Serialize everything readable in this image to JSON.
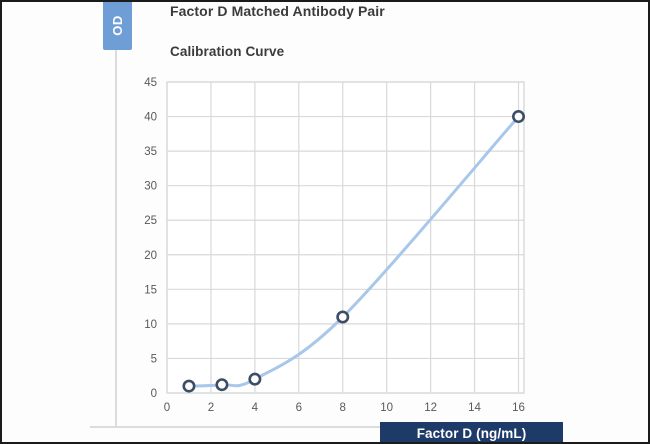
{
  "header": {
    "title": "Factor D Matched Antibody Pair",
    "subtitle": "Calibration Curve"
  },
  "axes": {
    "y_title": "OD",
    "x_title": "Factor D (ng/mL)",
    "y_title_box_color": "#6f9ed7",
    "x_title_box_color": "#1e3a69",
    "axis_title_text_color": "#ffffff"
  },
  "chart_data": {
    "type": "line",
    "title": "Calibration Curve",
    "xlabel": "Factor D (ng/mL)",
    "ylabel": "OD",
    "x": [
      1,
      2.5,
      4,
      8,
      16
    ],
    "y": [
      1,
      1.2,
      2,
      11,
      40
    ],
    "xlim": [
      0,
      16.25
    ],
    "ylim": [
      0,
      45
    ],
    "x_ticks": [
      0,
      2,
      4,
      6,
      8,
      10,
      12,
      14,
      16
    ],
    "y_ticks": [
      0,
      5,
      10,
      15,
      20,
      25,
      30,
      35,
      40,
      45
    ],
    "grid": true,
    "legend": false,
    "line_color": "#a9c7e9",
    "marker_stroke": "#3d4d66",
    "marker_fill": "#fdfdfe",
    "grid_color": "#d9d9d9",
    "plot_border_color": "#d9d9d9",
    "tick_label_color": "#595959"
  }
}
